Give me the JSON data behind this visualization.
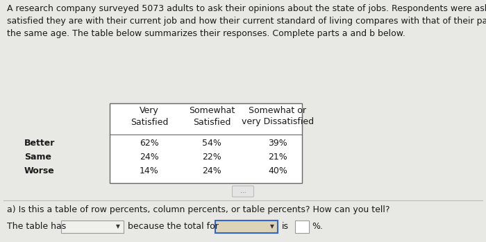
{
  "bg_color": "#e8e8e4",
  "white_area_color": "#f0f0ec",
  "paragraph_text": "A research company surveyed 5073 adults to ask their opinions about the state of jobs. Respondents were asked how\nsatisfied they are with their current job and how their current standard of living compares with that of their parents at\nthe same age. The table below summarizes their responses. Complete parts a and b below.",
  "col_headers": [
    "Very\nSatisfied",
    "Somewhat\nSatisfied",
    "Somewhat or\nvery Dissatisfied"
  ],
  "row_labels": [
    "Better",
    "Same",
    "Worse"
  ],
  "table_data": [
    [
      "62%",
      "54%",
      "39%"
    ],
    [
      "24%",
      "22%",
      "21%"
    ],
    [
      "14%",
      "24%",
      "40%"
    ]
  ],
  "dots_text": "...",
  "question_text": "a) Is this a table of row percents, column percents, or table percents? How can you tell?",
  "answer_prefix": "The table has",
  "answer_middle": "because the total for",
  "answer_suffix": "is",
  "answer_end": "%.",
  "font_size_para": 9.0,
  "font_size_table": 9.0,
  "font_size_question": 9.0,
  "font_size_answer": 9.0,
  "text_color": "#1a1a1a",
  "table_border_color": "#666666",
  "dropdown_color": "#f0f0ec",
  "dropdown_border": "#999999",
  "highlight_box_color": "#ddd4b8",
  "highlight_border_color": "#3366cc"
}
